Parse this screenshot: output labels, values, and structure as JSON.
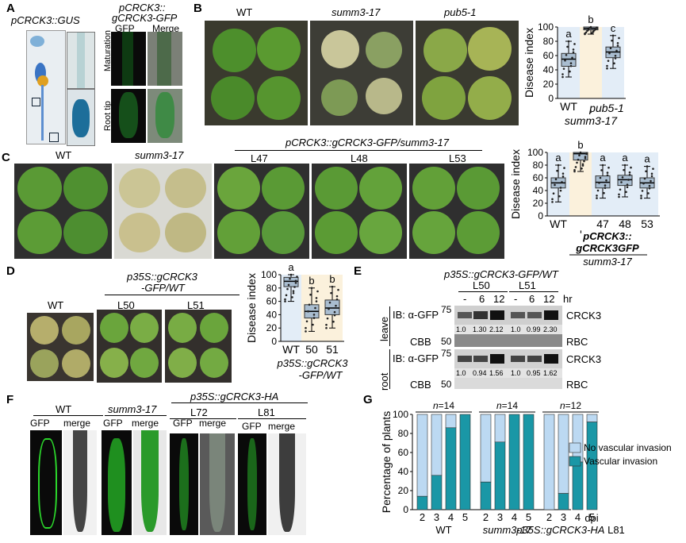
{
  "panels": {
    "A": {
      "letter": "A",
      "title": "pCRCK3::GUS",
      "title2a": "pCRCK3::",
      "title2b": "gCRCK3-GFP",
      "col_gfp": "GFP",
      "col_merge": "Merge",
      "row1": "Maturation",
      "row2": "Root tip"
    },
    "B": {
      "letter": "B",
      "labels": [
        "WT",
        "summ3-17",
        "pub5-1"
      ]
    },
    "C": {
      "letter": "C",
      "labels": [
        "WT",
        "summ3-17",
        "L47",
        "L48",
        "L53"
      ],
      "construct": "pCRCK3::gCRCK3-GFP/summ3-17"
    },
    "D": {
      "letter": "D",
      "construct_a": "p35S::gCRCK3",
      "construct_b": "-GFP/WT",
      "labels": [
        "WT",
        "L50",
        "L51"
      ]
    },
    "E": {
      "letter": "E",
      "construct": "p35S::gCRCK3-GFP/WT",
      "lines": [
        "L50",
        "L51"
      ],
      "times": [
        "-",
        "6",
        "12",
        "-",
        "6",
        "12"
      ],
      "hr": "hr",
      "tissue1": "leave",
      "tissue2": "root",
      "ib": "IB: α-GFP",
      "cbb": "CBB",
      "mw75": "75",
      "mw50": "50",
      "crck3": "CRCK3",
      "rbc": "RBC",
      "leaf_ratios": [
        "1.0",
        "1.30",
        "2.12",
        "1.0",
        "0.99",
        "2.30"
      ],
      "root_ratios": [
        "1.0",
        "0.94",
        "1.56",
        "1.0",
        "0.95",
        "1.62"
      ]
    },
    "F": {
      "letter": "F",
      "construct": "p35S::gCRCK3-HA",
      "groups": [
        "WT",
        "summ3-17",
        "L72",
        "L81"
      ],
      "gfp": "GFP",
      "merge": "merge"
    },
    "G": {
      "letter": "G"
    }
  },
  "chart_data": [
    {
      "type": "box",
      "panel": "B",
      "ylabel": "Disease index",
      "ylim": [
        0,
        100
      ],
      "yticks": [
        0,
        20,
        40,
        60,
        80,
        100
      ],
      "categories": [
        "WT",
        "summ3-17",
        "pub5-1"
      ],
      "letters": [
        "a",
        "b",
        "c"
      ],
      "medians": [
        55,
        98,
        65
      ],
      "q1": [
        45,
        96,
        57
      ],
      "q3": [
        63,
        100,
        72
      ],
      "min": [
        30,
        90,
        42
      ],
      "max": [
        80,
        100,
        88
      ]
    },
    {
      "type": "box",
      "panel": "C",
      "ylabel": "Disease index",
      "ylim": [
        0,
        100
      ],
      "yticks": [
        0,
        20,
        40,
        60,
        80,
        100
      ],
      "categories": [
        "WT",
        "-",
        "47",
        "48",
        "53"
      ],
      "letters": [
        "a",
        "b",
        "a",
        "a",
        "a"
      ],
      "group_label": [
        "pCRCK3::",
        "gCRCK3GFP",
        "summ3-17"
      ],
      "medians": [
        52,
        98,
        53,
        57,
        52
      ],
      "q1": [
        44,
        88,
        44,
        48,
        44
      ],
      "q3": [
        60,
        100,
        63,
        64,
        60
      ],
      "min": [
        22,
        70,
        28,
        30,
        28
      ],
      "max": [
        80,
        100,
        80,
        80,
        78
      ]
    },
    {
      "type": "box",
      "panel": "D",
      "ylabel": "Disease index",
      "ylim": [
        0,
        100
      ],
      "yticks": [
        0,
        20,
        40,
        60,
        80,
        100
      ],
      "categories": [
        "WT",
        "50",
        "51"
      ],
      "letters": [
        "a",
        "b",
        "b"
      ],
      "group_label": [
        "p35S::gCRCK3",
        "-GFP/WT"
      ],
      "medians": [
        90,
        45,
        50
      ],
      "q1": [
        82,
        35,
        40
      ],
      "q3": [
        96,
        55,
        62
      ],
      "min": [
        60,
        15,
        20
      ],
      "max": [
        100,
        80,
        82
      ]
    },
    {
      "type": "bar",
      "panel": "G",
      "stacked": true,
      "ylabel": "Percentage of plants",
      "xlabel": "dpi",
      "ylim": [
        0,
        100
      ],
      "yticks": [
        0,
        20,
        40,
        60,
        80,
        100
      ],
      "groups": [
        {
          "name": "WT",
          "n": "n=14"
        },
        {
          "name": "summ3-17",
          "n": "n=14"
        },
        {
          "name": "p35S::gCRCK3-HA",
          "suffix": "L81",
          "n": "n=12"
        }
      ],
      "categories": [
        "2",
        "3",
        "4",
        "5"
      ],
      "series": [
        {
          "name": "Vascular invasion",
          "color": "#1a97a6",
          "values": [
            [
              14,
              36,
              86,
              100
            ],
            [
              29,
              71,
              100,
              100
            ],
            [
              0,
              17,
              50,
              92
            ]
          ]
        },
        {
          "name": "No vascular invasion",
          "color": "#bcd9f2",
          "values": [
            [
              86,
              64,
              14,
              0
            ],
            [
              71,
              29,
              0,
              0
            ],
            [
              100,
              83,
              50,
              8
            ]
          ]
        }
      ]
    }
  ],
  "colors": {
    "teal": "#1a97a6",
    "light": "#bcd9f2",
    "box": "#a9bdd0",
    "leaf": "#3f8c2d",
    "yellow": "#d8d09a"
  }
}
